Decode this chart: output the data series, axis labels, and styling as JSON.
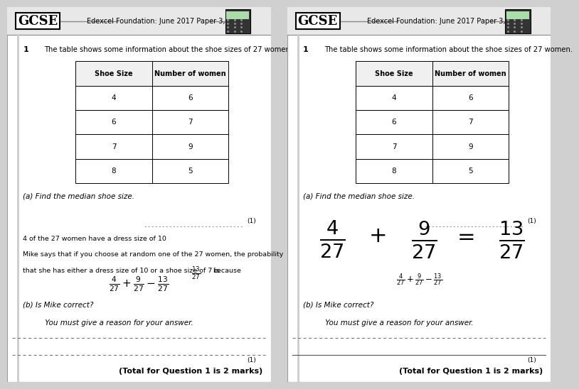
{
  "bg_color": "#d0d0d0",
  "panel_bg": "#ffffff",
  "title_subtitle": "Edexcel Foundation: June 2017 Paper 3, Q17",
  "q_number": "1",
  "q_text": "The table shows some information about the shoe sizes of 27 women.",
  "table_headers": [
    "Shoe Size",
    "Number of women"
  ],
  "table_data": [
    [
      "4",
      "6"
    ],
    [
      "6",
      "7"
    ],
    [
      "7",
      "9"
    ],
    [
      "8",
      "5"
    ]
  ],
  "part_a_text": "(a) Find the median shoe size.",
  "mark_a": "(1)",
  "para_text_line1": "4 of the 27 women have a dress size of 10",
  "para_text_line2": "Mike says that if you choose at random one of the 27 women, the probability",
  "para_text_line3": "that she has either a dress size of 10 or a shoe size of 7 is",
  "para_text_end": "because",
  "part_b_line1": "(b) Is Mike correct?",
  "part_b_line2": "     You must give a reason for your answer.",
  "total_marks": "(Total for Question 1 is 2 marks)",
  "mark_b": "(1)"
}
